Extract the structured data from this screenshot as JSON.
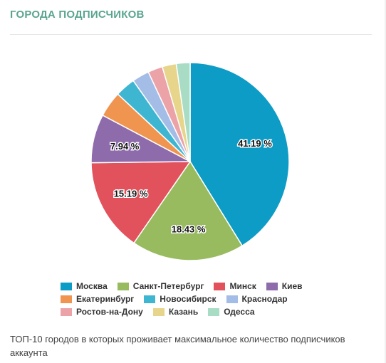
{
  "header": {
    "title": "ГОРОДА ПОДПИСЧИКОВ"
  },
  "caption": "ТОП-10 городов в которых проживает максимальное количество подписчиков аккаунта",
  "chart_data": {
    "type": "pie",
    "title": "ГОРОДА ПОДПИСЧИКОВ",
    "legend_position": "bottom",
    "slices": [
      {
        "label": "Москва",
        "value": 41.19,
        "color": "#0d9cc6",
        "data_label": "41.19 %"
      },
      {
        "label": "Санкт-Петербург",
        "value": 18.43,
        "color": "#98bb5f",
        "data_label": "18.43 %"
      },
      {
        "label": "Минск",
        "value": 15.19,
        "color": "#e1525c",
        "data_label": "15.19 %"
      },
      {
        "label": "Киев",
        "value": 7.94,
        "color": "#8e6bab",
        "data_label": "7.94 %"
      },
      {
        "label": "Екатеринбург",
        "value": 4.2,
        "color": "#ef9550",
        "data_label": ""
      },
      {
        "label": "Новосибирск",
        "value": 3.3,
        "color": "#3fb6d1",
        "data_label": ""
      },
      {
        "label": "Краснодар",
        "value": 2.8,
        "color": "#a3bde6",
        "data_label": ""
      },
      {
        "label": "Ростов-на-Дону",
        "value": 2.4,
        "color": "#eba3a8",
        "data_label": ""
      },
      {
        "label": "Казань",
        "value": 2.3,
        "color": "#e6d58a",
        "data_label": ""
      },
      {
        "label": "Одесса",
        "value": 2.25,
        "color": "#a8dcc4",
        "data_label": ""
      }
    ]
  }
}
